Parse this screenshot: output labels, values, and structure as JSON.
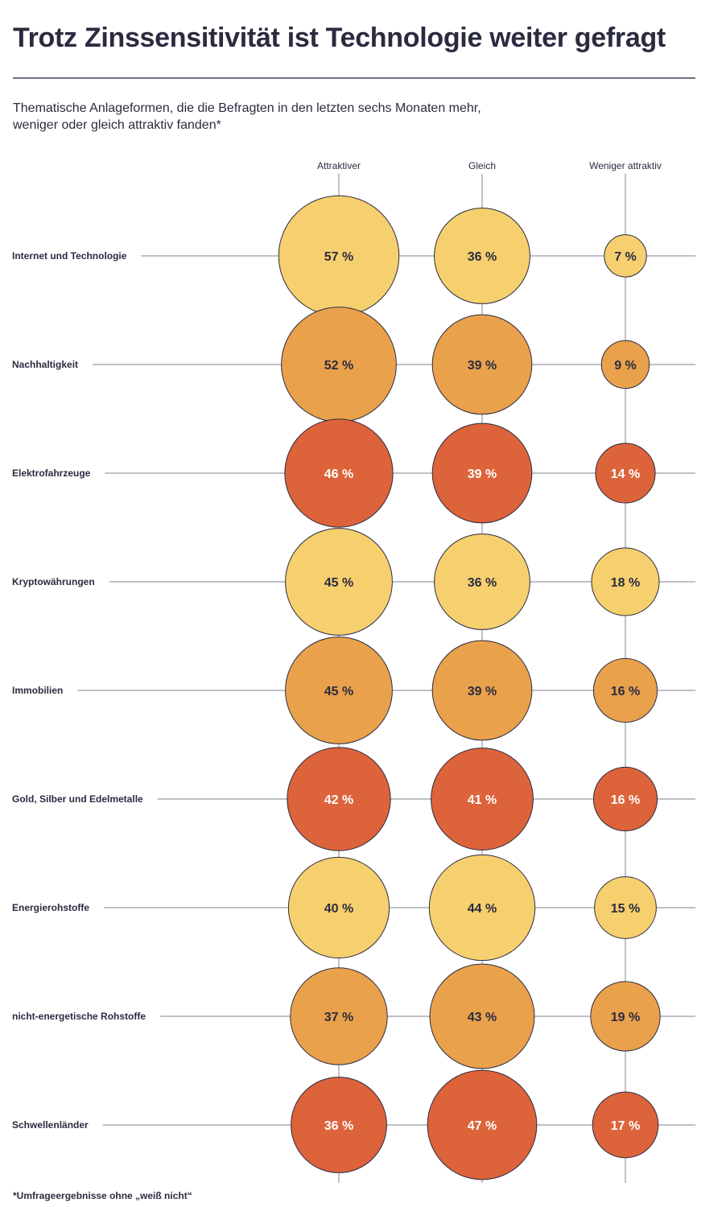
{
  "header": {
    "title": "Trotz Zinssensitivität ist Technologie weiter gefragt",
    "subtitle_line1": "Thematische Anlageformen, die die Befragten in den letzten sechs Monaten mehr,",
    "subtitle_line2": "weniger oder gleich attraktiv fanden*"
  },
  "footnote": "*Umfrageergebnisse ohne „weiß nicht“",
  "colors": {
    "light": "#f6d06e",
    "mid": "#e9a14c",
    "dark": "#dd633a",
    "label_dark": "#2b2b40",
    "label_light": "#ffffff",
    "line": "#9a9aa6"
  },
  "chart_data": {
    "type": "bubble-matrix",
    "value_suffix": " %",
    "columns": [
      "Attraktiver",
      "Gleich",
      "Weniger attraktiv"
    ],
    "rows": [
      {
        "label": "Internet und Technologie",
        "values": [
          57,
          36,
          7
        ],
        "color": "light"
      },
      {
        "label": "Nachhaltigkeit",
        "values": [
          52,
          39,
          9
        ],
        "color": "mid"
      },
      {
        "label": "Elektrofahrzeuge",
        "values": [
          46,
          39,
          14
        ],
        "color": "dark"
      },
      {
        "label": "Kryptowährungen",
        "values": [
          45,
          36,
          18
        ],
        "color": "light"
      },
      {
        "label": "Immobilien",
        "values": [
          45,
          39,
          16
        ],
        "color": "mid"
      },
      {
        "label": "Gold, Silber und Edelmetalle",
        "values": [
          42,
          41,
          16
        ],
        "color": "dark"
      },
      {
        "label": "Energierohstoffe",
        "values": [
          40,
          44,
          15
        ],
        "color": "light"
      },
      {
        "label": "nicht-energetische Rohstoffe",
        "values": [
          37,
          43,
          19
        ],
        "color": "mid"
      },
      {
        "label": "Schwellenländer",
        "values": [
          36,
          47,
          17
        ],
        "color": "dark"
      }
    ]
  }
}
